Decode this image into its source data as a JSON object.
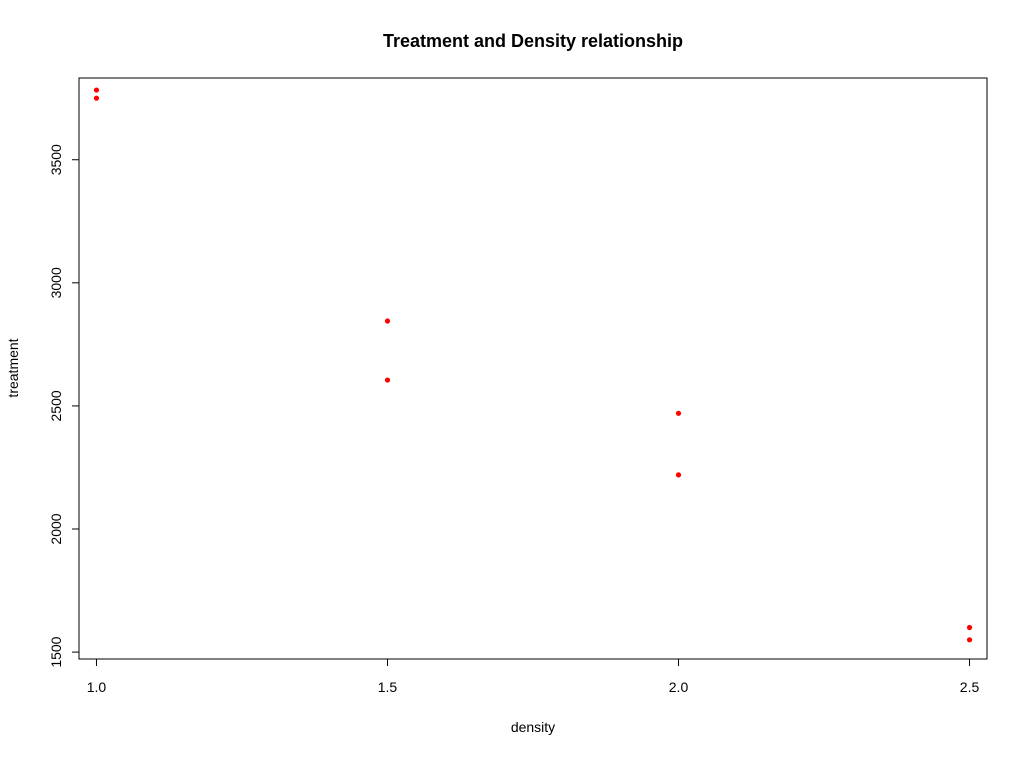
{
  "chart_data": {
    "type": "scatter",
    "title": "Treatment and Density relationship",
    "xlabel": "density",
    "ylabel": "treatment",
    "xlim": [
      0.97,
      2.53
    ],
    "ylim": [
      1472,
      3832
    ],
    "x_ticks": [
      1.0,
      1.5,
      2.0,
      2.5
    ],
    "x_tick_labels": [
      "1.0",
      "1.5",
      "2.0",
      "2.5"
    ],
    "y_ticks": [
      1500,
      2000,
      2500,
      3000,
      3500
    ],
    "y_tick_labels": [
      "1500",
      "2000",
      "2500",
      "3000",
      "3500"
    ],
    "grid": false,
    "legend": "none",
    "point_color": "#ff0000",
    "points": [
      {
        "x": 1.0,
        "y": 3783
      },
      {
        "x": 1.0,
        "y": 3750
      },
      {
        "x": 1.5,
        "y": 2845
      },
      {
        "x": 1.5,
        "y": 2605
      },
      {
        "x": 2.0,
        "y": 2470
      },
      {
        "x": 2.0,
        "y": 2220
      },
      {
        "x": 2.5,
        "y": 1600
      },
      {
        "x": 2.5,
        "y": 1550
      }
    ]
  }
}
